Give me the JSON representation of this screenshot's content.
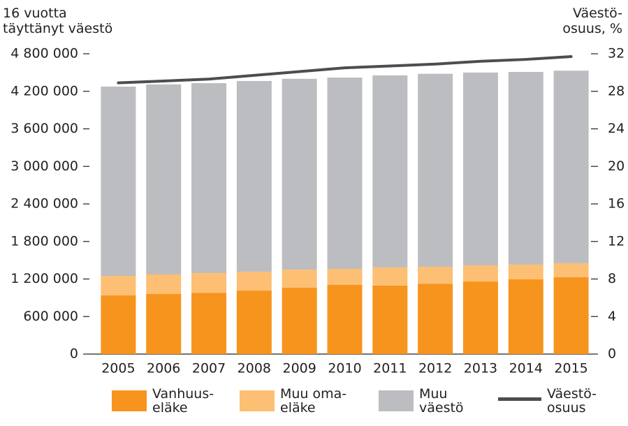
{
  "chart_data": {
    "type": "bar",
    "y_label": "16 vuotta\ntäyttänyt väestö",
    "y2_label": "Väestö-\nosuus, %",
    "stacked": true,
    "categories": [
      "2005",
      "2006",
      "2007",
      "2008",
      "2009",
      "2010",
      "2011",
      "2012",
      "2013",
      "2014",
      "2015"
    ],
    "series": [
      {
        "name": "Vanhuus-\neläke",
        "color": "#f7941d",
        "values": [
          940000,
          960000,
          980000,
          1015000,
          1060000,
          1105000,
          1095000,
          1125000,
          1160000,
          1195000,
          1230000
        ]
      },
      {
        "name": "Muu oma-\neläke",
        "color": "#fdbf73",
        "values": [
          310000,
          313000,
          315000,
          300000,
          290000,
          257000,
          290000,
          270000,
          258000,
          235000,
          222000
        ]
      },
      {
        "name": "Muu\nväestö",
        "color": "#bcbdc0",
        "values": [
          3025000,
          3037000,
          3035000,
          3050000,
          3050000,
          3058000,
          3070000,
          3085000,
          3082000,
          3080000,
          3078000
        ]
      },
      {
        "name": "Väestö-\nosuus",
        "color": "#4d4d4f",
        "type": "line",
        "axis": "y2",
        "values": [
          28.9,
          29.1,
          29.3,
          29.7,
          30.1,
          30.5,
          30.7,
          30.9,
          31.2,
          31.4,
          31.7
        ]
      }
    ],
    "ylim": [
      0,
      4800000
    ],
    "yticks": [
      0,
      {
        "value": 600000,
        "label": "600 000"
      },
      {
        "value": 1200000,
        "label": "1 200 000"
      },
      {
        "value": 1800000,
        "label": "1 800 000"
      },
      {
        "value": 2400000,
        "label": "2 400 000"
      },
      {
        "value": 3000000,
        "label": "3 000 000"
      },
      {
        "value": 3600000,
        "label": "3 600 000"
      },
      {
        "value": 4200000,
        "label": "4 200 000"
      },
      {
        "value": 4800000,
        "label": "4 800 000"
      }
    ],
    "y2lim": [
      0,
      32
    ],
    "y2ticks": [
      0,
      4,
      8,
      12,
      16,
      20,
      24,
      28,
      32
    ],
    "legend": "bottom"
  }
}
